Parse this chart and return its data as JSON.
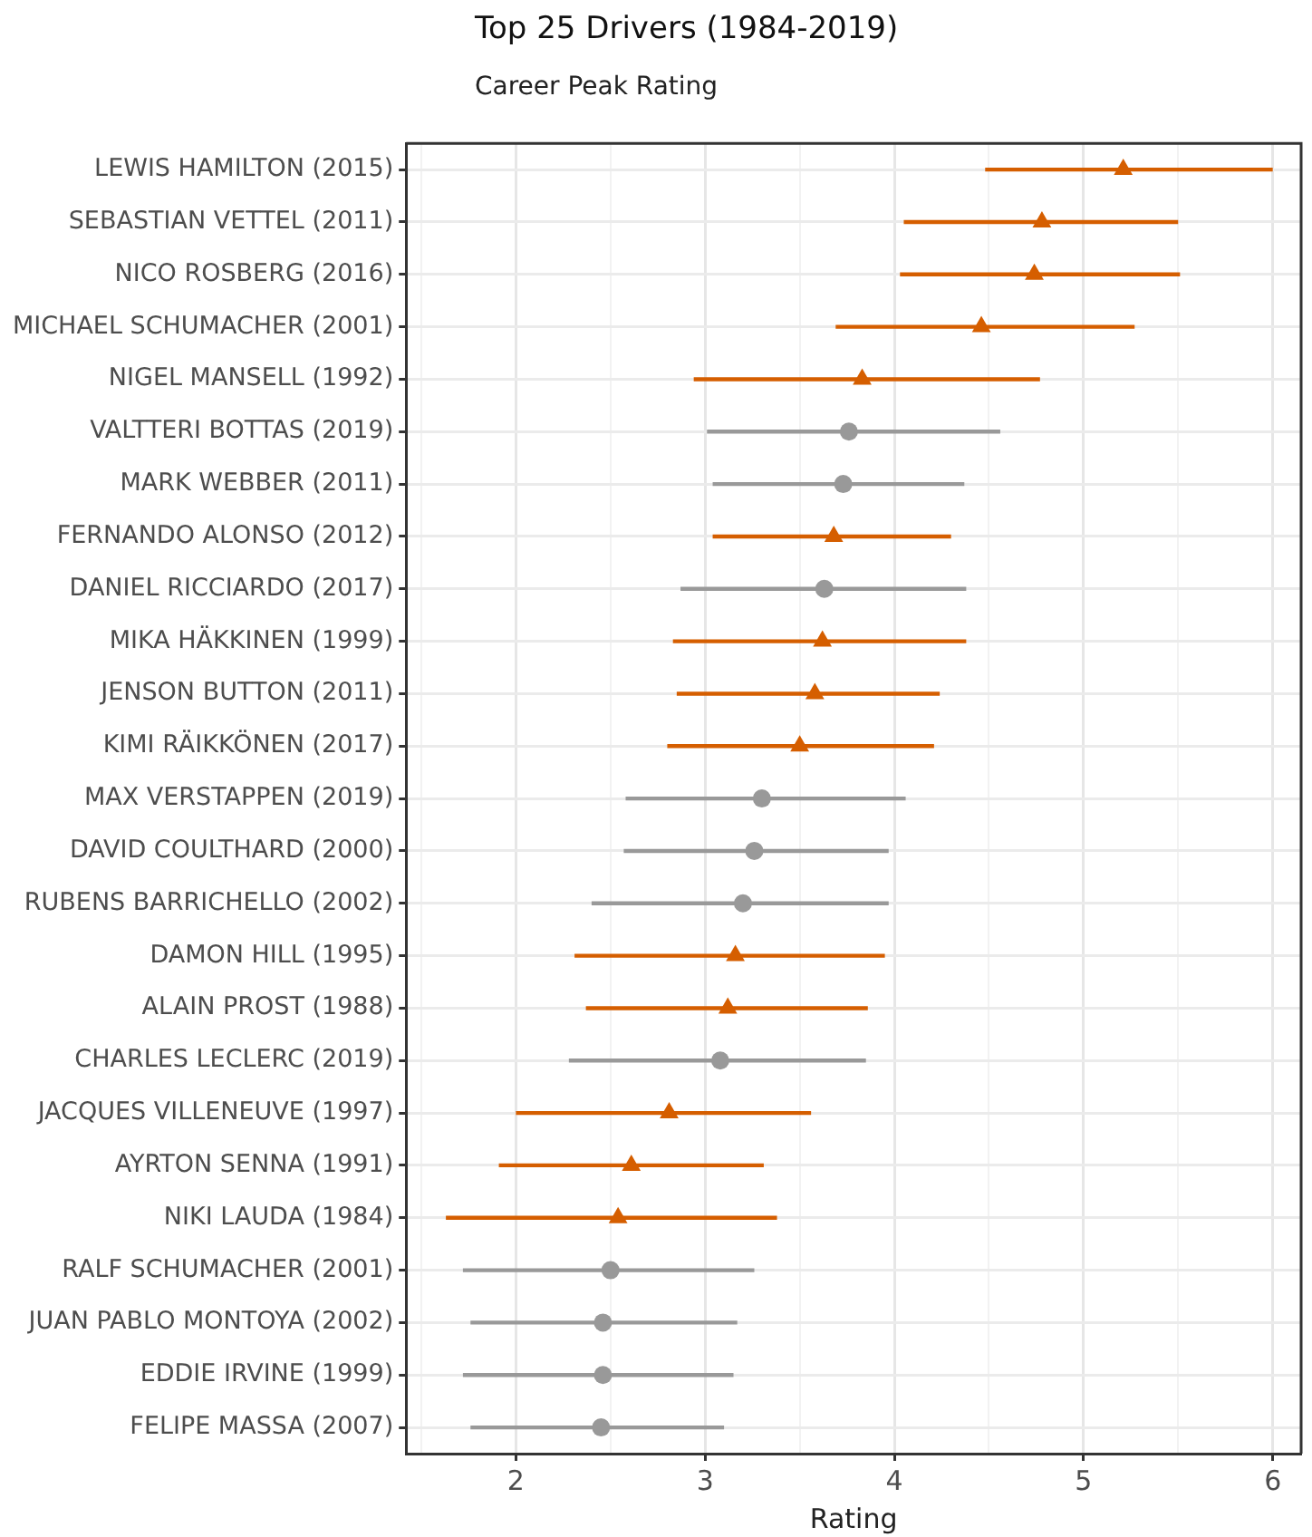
{
  "chart_data": {
    "type": "scatter",
    "title": "Top 25 Drivers (1984-2019)",
    "subtitle": "Career Peak Rating",
    "xlabel": "Rating",
    "orientation": "horizontal",
    "grid": true,
    "legend": false,
    "categories": [
      "LEWIS HAMILTON (2015)",
      "SEBASTIAN VETTEL (2011)",
      "NICO ROSBERG (2016)",
      "MICHAEL SCHUMACHER (2001)",
      "NIGEL MANSELL (1992)",
      "VALTTERI BOTTAS (2019)",
      "MARK WEBBER (2011)",
      "FERNANDO ALONSO (2012)",
      "DANIEL RICCIARDO (2017)",
      "MIKA HÄKKINEN (1999)",
      "JENSON BUTTON (2011)",
      "KIMI RÄIKKÖNEN (2017)",
      "MAX VERSTAPPEN (2019)",
      "DAVID COULTHARD (2000)",
      "RUBENS BARRICHELLO (2002)",
      "DAMON HILL (1995)",
      "ALAIN PROST (1988)",
      "CHARLES LECLERC (2019)",
      "JACQUES VILLENEUVE (1997)",
      "AYRTON SENNA (1991)",
      "NIKI LAUDA (1984)",
      "RALF SCHUMACHER (2001)",
      "JUAN PABLO MONTOYA (2002)",
      "EDDIE IRVINE (1999)",
      "FELIPE MASSA (2007)"
    ],
    "xlim": [
      1.42,
      6.15
    ],
    "xticks": [
      {
        "value": 1.5,
        "label": null
      },
      2,
      {
        "value": 2.5,
        "label": null
      },
      3,
      {
        "value": 3.5,
        "label": null
      },
      4,
      {
        "value": 4.5,
        "label": null
      },
      5,
      {
        "value": 5.5,
        "label": null
      },
      6
    ],
    "series": [
      {
        "color": "#d55e00",
        "marker": "triangle",
        "values": [
          5.21,
          4.78,
          4.74,
          4.46,
          3.83,
          null,
          null,
          3.68,
          null,
          3.62,
          3.58,
          3.5,
          null,
          null,
          null,
          3.16,
          3.12,
          null,
          2.81,
          2.61,
          2.54,
          null,
          null,
          null,
          null
        ],
        "errors": [
          [
            4.48,
            6.0
          ],
          [
            4.05,
            5.5
          ],
          [
            4.03,
            5.51
          ],
          [
            3.69,
            5.27
          ],
          [
            2.94,
            4.77
          ],
          null,
          null,
          [
            3.04,
            4.3
          ],
          null,
          [
            2.83,
            4.38
          ],
          [
            2.85,
            4.24
          ],
          [
            2.8,
            4.21
          ],
          null,
          null,
          null,
          [
            2.31,
            3.95
          ],
          [
            2.37,
            3.86
          ],
          null,
          [
            2.0,
            3.56
          ],
          [
            1.91,
            3.31
          ],
          [
            1.63,
            3.38
          ],
          null,
          null,
          null,
          null
        ]
      },
      {
        "color": "#999999",
        "marker": "circle",
        "values": [
          null,
          null,
          null,
          null,
          null,
          3.76,
          3.73,
          null,
          3.63,
          null,
          null,
          null,
          3.3,
          3.26,
          3.2,
          null,
          null,
          3.08,
          null,
          null,
          null,
          2.5,
          2.46,
          2.46,
          2.45
        ],
        "errors": [
          null,
          null,
          null,
          null,
          null,
          [
            3.01,
            4.56
          ],
          [
            3.04,
            4.37
          ],
          null,
          [
            2.87,
            4.38
          ],
          null,
          null,
          null,
          [
            2.58,
            4.06
          ],
          [
            2.57,
            3.97
          ],
          [
            2.4,
            3.97
          ],
          null,
          null,
          [
            2.28,
            3.85
          ],
          null,
          null,
          null,
          [
            1.72,
            3.26
          ],
          [
            1.76,
            3.17
          ],
          [
            1.72,
            3.15
          ],
          [
            1.76,
            3.1
          ]
        ]
      }
    ]
  }
}
